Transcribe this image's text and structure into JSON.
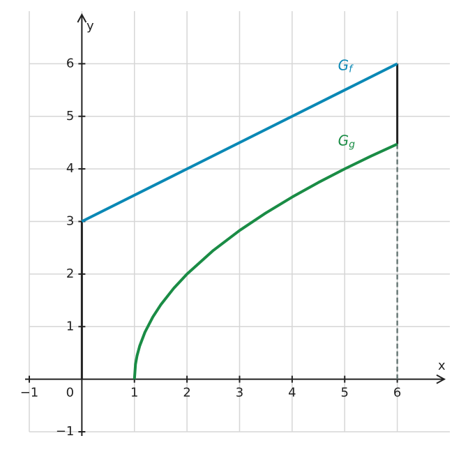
{
  "chart_data": {
    "type": "line",
    "xlabel": "x",
    "ylabel": "y",
    "xlim": [
      -1,
      7
    ],
    "ylim": [
      -1,
      7
    ],
    "xticks": [
      {
        "value": -1,
        "label": "−1"
      },
      0,
      1,
      2,
      3,
      4,
      5,
      6
    ],
    "yticks": [
      {
        "value": -1,
        "label": "−1"
      },
      1,
      2,
      3,
      4,
      5,
      6
    ],
    "grid": true,
    "series": [
      {
        "name": "G",
        "subscript": "f",
        "color": "#0a88b5",
        "x": [
          0,
          6
        ],
        "values": [
          3,
          6
        ]
      },
      {
        "name": "G",
        "subscript": "g",
        "color": "#1a8c45",
        "x": [
          1,
          1.02,
          1.05,
          1.1,
          1.2,
          1.35,
          1.5,
          1.75,
          2,
          2.5,
          3,
          3.5,
          4,
          4.5,
          5,
          5.5,
          6
        ],
        "values": [
          0,
          0.283,
          0.447,
          0.632,
          0.894,
          1.183,
          1.414,
          1.732,
          2,
          2.449,
          2.828,
          3.162,
          3.464,
          3.742,
          4,
          4.243,
          4.472
        ]
      }
    ],
    "segments": [
      {
        "x": [
          0,
          0
        ],
        "values": [
          0,
          3
        ],
        "color": "#222",
        "dashed": false
      },
      {
        "x": [
          6,
          6
        ],
        "values": [
          4.472,
          6
        ],
        "color": "#222",
        "dashed": false
      },
      {
        "x": [
          6,
          6
        ],
        "values": [
          0,
          4.472
        ],
        "color": "#6a7a78",
        "dashed": true
      }
    ]
  }
}
